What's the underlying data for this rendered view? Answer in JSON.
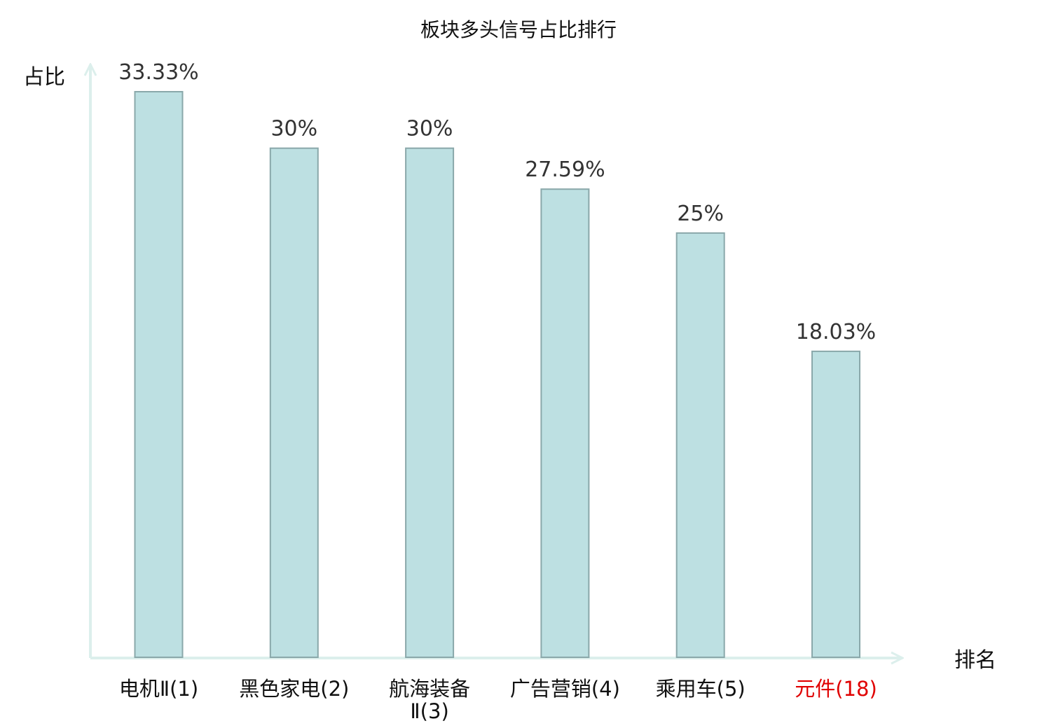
{
  "chart_data": {
    "type": "bar",
    "title": "板块多头信号占比排行",
    "xlabel": "排名",
    "ylabel": "占比",
    "categories": [
      [
        "电机Ⅱ(1)"
      ],
      [
        "黑色家电(2)"
      ],
      [
        "航海装备",
        "Ⅱ(3)"
      ],
      [
        "广告营销(4)"
      ],
      [
        "乘用车(5)"
      ],
      [
        "元件(18)"
      ]
    ],
    "values": [
      33.33,
      30,
      30,
      27.59,
      25,
      18.03
    ],
    "value_labels": [
      "33.33%",
      "30%",
      "30%",
      "27.59%",
      "25%",
      "18.03%"
    ],
    "highlight_index": 5,
    "ylim": [
      0,
      33.33
    ],
    "grid": false,
    "legend": "none",
    "colors": {
      "bar_fill": "#bde0e2",
      "bar_stroke": "#8aa8aa",
      "axis": "#dcefec",
      "highlight_label": "#e00000",
      "label": "#111111"
    }
  }
}
